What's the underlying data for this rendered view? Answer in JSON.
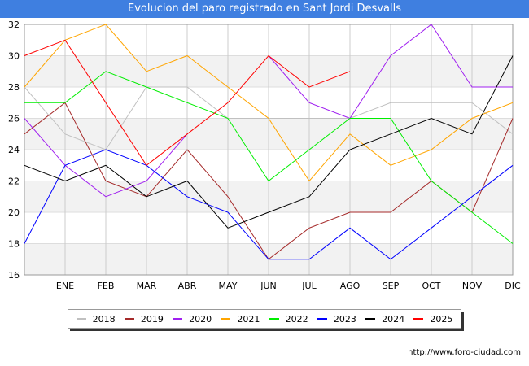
{
  "header": {
    "title": "Evolucion del paro registrado en Sant Jordi Desvalls"
  },
  "footer": {
    "url": "http://www.foro-ciudad.com"
  },
  "chart_data": {
    "type": "line",
    "title": "Evolucion del paro registrado en Sant Jordi Desvalls",
    "xlabel": "",
    "ylabel": "",
    "categories": [
      "",
      "ENE",
      "FEB",
      "MAR",
      "ABR",
      "MAY",
      "JUN",
      "JUL",
      "AGO",
      "SEP",
      "OCT",
      "NOV",
      "DIC"
    ],
    "ylim": [
      16,
      32
    ],
    "yticks": [
      16,
      18,
      20,
      22,
      24,
      26,
      28,
      30,
      32
    ],
    "grid": true,
    "legend_position": "bottom",
    "series": [
      {
        "name": "2018",
        "color": "#c0c0c0",
        "values": [
          28,
          25,
          24,
          28,
          28,
          26,
          26,
          26,
          26,
          27,
          27,
          27,
          25
        ]
      },
      {
        "name": "2019",
        "color": "#a52a2a",
        "values": [
          25,
          27,
          22,
          21,
          24,
          21,
          17,
          19,
          20,
          20,
          22,
          20,
          26
        ]
      },
      {
        "name": "2020",
        "color": "#a020f0",
        "values": [
          26,
          23,
          21,
          22,
          25,
          null,
          30,
          27,
          26,
          30,
          32,
          28,
          28
        ]
      },
      {
        "name": "2021",
        "color": "#ffa500",
        "values": [
          28,
          31,
          32,
          29,
          30,
          28,
          26,
          22,
          25,
          23,
          24,
          26,
          27
        ]
      },
      {
        "name": "2022",
        "color": "#00ee00",
        "values": [
          27,
          27,
          29,
          28,
          27,
          26,
          22,
          24,
          26,
          26,
          22,
          20,
          18
        ]
      },
      {
        "name": "2023",
        "color": "#0000ff",
        "values": [
          18,
          23,
          24,
          23,
          21,
          20,
          17,
          17,
          19,
          17,
          19,
          21,
          23
        ]
      },
      {
        "name": "2024",
        "color": "#000000",
        "values": [
          23,
          22,
          23,
          21,
          22,
          19,
          20,
          21,
          24,
          25,
          26,
          25,
          30
        ]
      },
      {
        "name": "2025",
        "color": "#ff0000",
        "values": [
          30,
          31,
          27,
          23,
          25,
          27,
          30,
          28,
          29,
          null,
          null,
          null,
          null
        ]
      }
    ]
  }
}
